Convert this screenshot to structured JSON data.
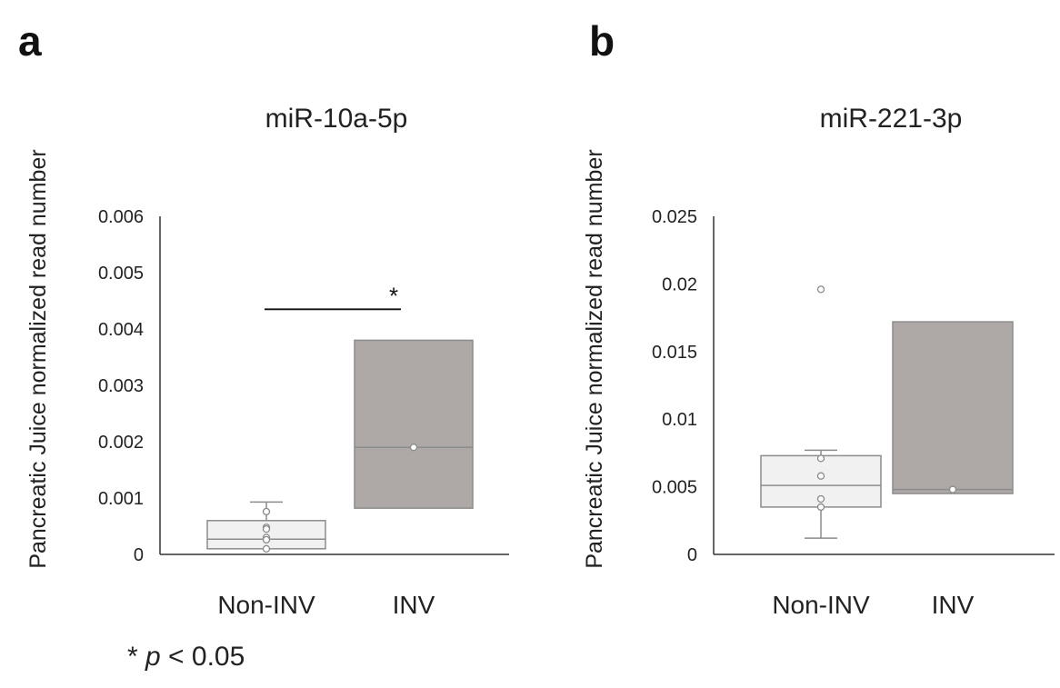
{
  "panels": {
    "a": {
      "letter": "a"
    },
    "b": {
      "letter": "b"
    }
  },
  "footnote": {
    "star": "*",
    "p": "p",
    "rest": " < 0.05"
  },
  "colors": {
    "non_inv_box": "#f1f1f1",
    "inv_box": "#aea9a7",
    "stroke": "#8c8c8c",
    "axis": "#333333"
  },
  "chart_data": [
    {
      "type": "box",
      "title": "miR-10a-5p",
      "ylabel": "Pancreatic Juice normalized read number",
      "ylim": [
        0,
        0.006
      ],
      "yticks": [
        0,
        0.001,
        0.002,
        0.003,
        0.004,
        0.005,
        0.006
      ],
      "ytick_labels": [
        "0",
        "0.001",
        "0.002",
        "0.003",
        "0.004",
        "0.005",
        "0.006"
      ],
      "categories": [
        "Non-INV",
        "INV"
      ],
      "boxes": [
        {
          "name": "Non-INV",
          "q1": 0.0001,
          "median": 0.00027,
          "q3": 0.0006,
          "whisker_low": 0.0001,
          "whisker_high": 0.00093,
          "points": [
            0.00076,
            0.00048,
            0.00045,
            0.0003,
            0.00026,
            0.0001
          ],
          "fill": "#f1f1f1"
        },
        {
          "name": "INV",
          "q1": 0.00082,
          "median": 0.0019,
          "q3": 0.0038,
          "whisker_low": null,
          "whisker_high": null,
          "points": [
            0.0019
          ],
          "fill": "#aea9a7"
        }
      ],
      "significance": {
        "label": "*",
        "y": 0.00435
      }
    },
    {
      "type": "box",
      "title": "miR-221-3p",
      "ylabel": "Pancreatic Juice normalized read number",
      "ylim": [
        0,
        0.025
      ],
      "yticks": [
        0,
        0.005,
        0.01,
        0.015,
        0.02,
        0.025
      ],
      "ytick_labels": [
        "0",
        "0.005",
        "0.01",
        "0.015",
        "0.02",
        "0.025"
      ],
      "categories": [
        "Non-INV",
        "INV"
      ],
      "boxes": [
        {
          "name": "Non-INV",
          "q1": 0.0035,
          "median": 0.0051,
          "q3": 0.0073,
          "whisker_low": 0.0012,
          "whisker_high": 0.0077,
          "points": [
            0.0196,
            0.0071,
            0.0058,
            0.0041,
            0.0035
          ],
          "fill": "#f1f1f1"
        },
        {
          "name": "INV",
          "q1": 0.0045,
          "median": 0.0048,
          "q3": 0.0172,
          "whisker_low": null,
          "whisker_high": null,
          "points": [
            0.0048
          ],
          "fill": "#aea9a7"
        }
      ],
      "significance": null
    }
  ]
}
